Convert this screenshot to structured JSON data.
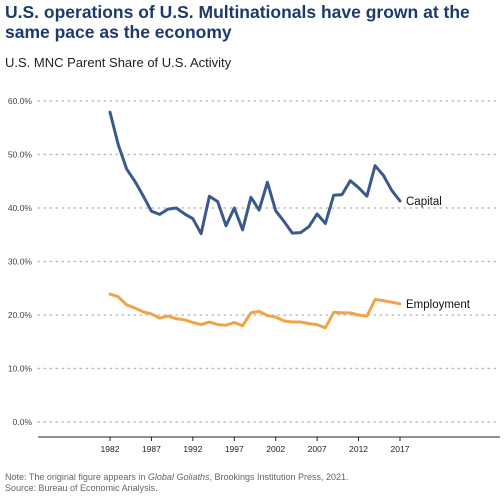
{
  "title": "U.S. operations of U.S. Multinationals have grown at the same pace as the economy",
  "subtitle": "U.S. MNC Parent Share of U.S. Activity",
  "note": {
    "prefix": "Note: The original figure appears in ",
    "italic": "Global Goliaths",
    "suffix": ", Brookings Institution Press, 2021.",
    "source": "Source: Bureau of Economic Analysis."
  },
  "chart_data": {
    "type": "line",
    "title": "U.S. MNC Parent Share of U.S. Activity",
    "xlabel": "",
    "ylabel": "",
    "xlim": [
      1982,
      2017
    ],
    "ylim": [
      0,
      60
    ],
    "x_ticks": [
      1982,
      1987,
      1992,
      1997,
      2002,
      2007,
      2012,
      2017
    ],
    "y_ticks": [
      "0.0%",
      "10.0%",
      "20.0%",
      "30.0%",
      "40.0%",
      "50.0%",
      "60.0%"
    ],
    "grid": "horizontal dotted",
    "colors": {
      "Capital": "#3a5a8c",
      "Employment": "#f2a247"
    },
    "series": [
      {
        "name": "Capital",
        "label": "Capital",
        "x": [
          1982,
          1983,
          1984,
          1985,
          1986,
          1987,
          1988,
          1989,
          1990,
          1991,
          1992,
          1993,
          1994,
          1995,
          1996,
          1997,
          1998,
          1999,
          2000,
          2001,
          2002,
          2003,
          2004,
          2005,
          2006,
          2007,
          2008,
          2009,
          2010,
          2011,
          2012,
          2013,
          2014,
          2015,
          2016,
          2017
        ],
        "values": [
          57.9,
          51.8,
          47.3,
          45.0,
          42.3,
          39.4,
          38.8,
          39.8,
          40.0,
          38.9,
          38.0,
          35.2,
          42.2,
          41.2,
          36.7,
          40.0,
          35.9,
          42.0,
          39.6,
          44.8,
          39.5,
          37.5,
          35.3,
          35.4,
          36.5,
          38.9,
          37.1,
          42.4,
          42.5,
          45.1,
          43.8,
          42.2,
          47.9,
          46.1,
          43.3,
          41.3
        ]
      },
      {
        "name": "Employment",
        "label": "Employment",
        "x": [
          1982,
          1983,
          1984,
          1985,
          1986,
          1987,
          1988,
          1989,
          1990,
          1991,
          1992,
          1993,
          1994,
          1995,
          1996,
          1997,
          1998,
          1999,
          2000,
          2001,
          2002,
          2003,
          2004,
          2005,
          2006,
          2007,
          2008,
          2009,
          2010,
          2011,
          2012,
          2013,
          2014,
          2015,
          2016,
          2017
        ],
        "values": [
          23.9,
          23.4,
          21.9,
          21.3,
          20.6,
          20.2,
          19.4,
          19.8,
          19.3,
          19.1,
          18.6,
          18.2,
          18.7,
          18.2,
          18.1,
          18.6,
          18.0,
          20.4,
          20.7,
          19.9,
          19.6,
          18.9,
          18.7,
          18.7,
          18.4,
          18.2,
          17.6,
          20.5,
          20.4,
          20.4,
          20.0,
          19.8,
          22.9,
          22.7,
          22.4,
          22.1
        ]
      }
    ]
  }
}
